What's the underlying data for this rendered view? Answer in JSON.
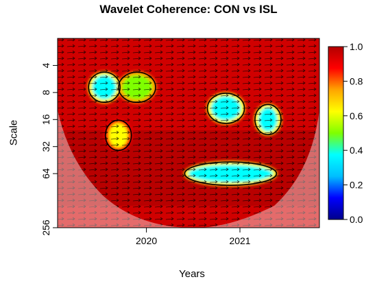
{
  "chart_data": {
    "type": "heatmap",
    "title": "Wavelet Coherence: CON vs ISL",
    "xlabel": "Years",
    "ylabel": "Scale",
    "x_ticks": [
      {
        "label": "2020",
        "value": 2020.0
      },
      {
        "label": "2021",
        "value": 2021.0
      }
    ],
    "xlim": [
      2019.05,
      2021.85
    ],
    "y_ticks": [
      {
        "label": "4",
        "value": 4
      },
      {
        "label": "8",
        "value": 8
      },
      {
        "label": "16",
        "value": 16
      },
      {
        "label": "32",
        "value": 32
      },
      {
        "label": "64",
        "value": 64
      },
      {
        "label": "256",
        "value": 256
      }
    ],
    "ylim": [
      2,
      256
    ],
    "y_scale": "log2, reversed",
    "colorbar": {
      "ticks": [
        "0.0",
        "0.2",
        "0.4",
        "0.6",
        "0.8",
        "1.0"
      ],
      "range": [
        0,
        1
      ],
      "colors": [
        "#00008b",
        "#0000ff",
        "#00bfff",
        "#00ffff",
        "#7fff00",
        "#ffff00",
        "#ffa500",
        "#ff0000",
        "#b30000"
      ]
    },
    "regions": [
      {
        "label": "high coherence background",
        "coherence": 0.9
      },
      {
        "label": "low coherence patch",
        "x": 2020.9,
        "scale": 64,
        "coherence": 0.35
      },
      {
        "label": "low coherence patch",
        "x": 2020.85,
        "scale": 12,
        "coherence": 0.35
      },
      {
        "label": "low coherence patch",
        "x": 2021.3,
        "scale": 16,
        "coherence": 0.4
      },
      {
        "label": "low coherence patch",
        "x": 2019.55,
        "scale": 7,
        "coherence": 0.4
      },
      {
        "label": "low coherence patch",
        "x": 2019.9,
        "scale": 7,
        "coherence": 0.45
      },
      {
        "label": "medium coherence patch",
        "x": 2019.7,
        "scale": 24,
        "coherence": 0.6
      }
    ]
  }
}
